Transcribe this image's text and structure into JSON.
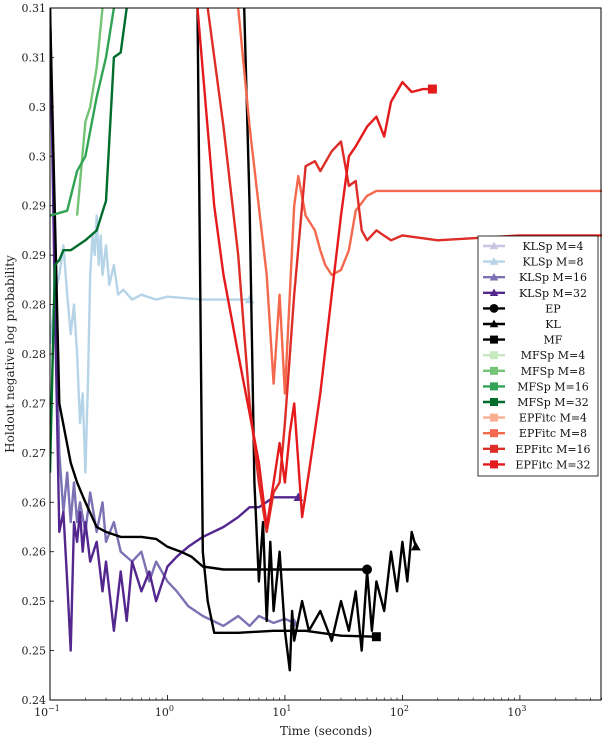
{
  "chart_data": {
    "type": "line",
    "xlabel": "Time (seconds)",
    "ylabel": "Holdout negative log probability",
    "x_scale": "log",
    "xlim": [
      0.1,
      5000
    ],
    "ylim": [
      0.24,
      0.31
    ],
    "x_ticks": [
      {
        "value": 0.1,
        "base": "10",
        "exp": "−1"
      },
      {
        "value": 1,
        "base": "10",
        "exp": "0"
      },
      {
        "value": 10,
        "base": "10",
        "exp": "1"
      },
      {
        "value": 100,
        "base": "10",
        "exp": "2"
      },
      {
        "value": 1000,
        "base": "10",
        "exp": "3"
      }
    ],
    "y_ticks": [
      {
        "value": 0.24,
        "label": "0.24"
      },
      {
        "value": 0.245,
        "label": "0.25"
      },
      {
        "value": 0.25,
        "label": "0.25"
      },
      {
        "value": 0.255,
        "label": "0.26"
      },
      {
        "value": 0.26,
        "label": "0.26"
      },
      {
        "value": 0.265,
        "label": "0.27"
      },
      {
        "value": 0.27,
        "label": "0.27"
      },
      {
        "value": 0.275,
        "label": "0.28"
      },
      {
        "value": 0.28,
        "label": "0.28"
      },
      {
        "value": 0.285,
        "label": "0.29"
      },
      {
        "value": 0.29,
        "label": "0.29"
      },
      {
        "value": 0.295,
        "label": "0.3"
      },
      {
        "value": 0.3,
        "label": "0.3"
      },
      {
        "value": 0.305,
        "label": "0.31"
      },
      {
        "value": 0.31,
        "label": "0.31"
      }
    ],
    "legend_position": "right",
    "series": [
      {
        "name": "KLSp M=4",
        "color": "#c8c6e2",
        "marker": "triangle",
        "points": []
      },
      {
        "name": "KLSp M=8",
        "color": "#b6d4e8",
        "marker": "triangle",
        "points": [
          [
            0.1,
            0.276
          ],
          [
            0.11,
            0.281
          ],
          [
            0.12,
            0.283
          ],
          [
            0.13,
            0.286
          ],
          [
            0.14,
            0.281
          ],
          [
            0.15,
            0.277
          ],
          [
            0.16,
            0.28
          ],
          [
            0.17,
            0.275
          ],
          [
            0.18,
            0.268
          ],
          [
            0.19,
            0.271
          ],
          [
            0.2,
            0.263
          ],
          [
            0.21,
            0.272
          ],
          [
            0.22,
            0.283
          ],
          [
            0.23,
            0.287
          ],
          [
            0.24,
            0.285
          ],
          [
            0.25,
            0.289
          ],
          [
            0.26,
            0.284
          ],
          [
            0.27,
            0.287
          ],
          [
            0.28,
            0.283
          ],
          [
            0.3,
            0.286
          ],
          [
            0.32,
            0.282
          ],
          [
            0.35,
            0.284
          ],
          [
            0.38,
            0.281
          ],
          [
            0.42,
            0.2815
          ],
          [
            0.5,
            0.2805
          ],
          [
            0.6,
            0.281
          ],
          [
            0.8,
            0.2805
          ],
          [
            1,
            0.2808
          ],
          [
            2,
            0.2805
          ],
          [
            3,
            0.2805
          ],
          [
            5,
            0.2805
          ]
        ]
      },
      {
        "name": "KLSp M=16",
        "color": "#7b72b4",
        "marker": "triangle",
        "points": [
          [
            0.1,
            0.31
          ],
          [
            0.11,
            0.283
          ],
          [
            0.12,
            0.265
          ],
          [
            0.13,
            0.259
          ],
          [
            0.14,
            0.263
          ],
          [
            0.15,
            0.258
          ],
          [
            0.16,
            0.262
          ],
          [
            0.17,
            0.258
          ],
          [
            0.18,
            0.26
          ],
          [
            0.2,
            0.257
          ],
          [
            0.22,
            0.261
          ],
          [
            0.25,
            0.257
          ],
          [
            0.28,
            0.26
          ],
          [
            0.3,
            0.256
          ],
          [
            0.35,
            0.258
          ],
          [
            0.4,
            0.255
          ],
          [
            0.5,
            0.254
          ],
          [
            0.6,
            0.255
          ],
          [
            0.7,
            0.252
          ],
          [
            0.8,
            0.254
          ],
          [
            1,
            0.252
          ],
          [
            1.2,
            0.251
          ],
          [
            1.5,
            0.2495
          ],
          [
            2,
            0.2485
          ],
          [
            3,
            0.2475
          ],
          [
            4,
            0.2485
          ],
          [
            5,
            0.2475
          ],
          [
            6,
            0.2485
          ],
          [
            8,
            0.2478
          ],
          [
            10,
            0.2482
          ],
          [
            12,
            0.2478
          ]
        ]
      },
      {
        "name": "KLSp M=32",
        "color": "#54278f",
        "marker": "triangle",
        "points": [
          [
            0.1,
            0.31
          ],
          [
            0.11,
            0.28
          ],
          [
            0.12,
            0.257
          ],
          [
            0.13,
            0.259
          ],
          [
            0.14,
            0.252
          ],
          [
            0.15,
            0.245
          ],
          [
            0.16,
            0.258
          ],
          [
            0.17,
            0.256
          ],
          [
            0.18,
            0.259
          ],
          [
            0.19,
            0.255
          ],
          [
            0.2,
            0.258
          ],
          [
            0.22,
            0.254
          ],
          [
            0.25,
            0.256
          ],
          [
            0.28,
            0.251
          ],
          [
            0.3,
            0.254
          ],
          [
            0.35,
            0.247
          ],
          [
            0.4,
            0.253
          ],
          [
            0.45,
            0.248
          ],
          [
            0.5,
            0.254
          ],
          [
            0.6,
            0.251
          ],
          [
            0.7,
            0.253
          ],
          [
            0.8,
            0.25
          ],
          [
            1,
            0.2535
          ],
          [
            1.2,
            0.2545
          ],
          [
            1.5,
            0.2555
          ],
          [
            2,
            0.2565
          ],
          [
            3,
            0.2575
          ],
          [
            4,
            0.2585
          ],
          [
            5,
            0.2595
          ],
          [
            6,
            0.2595
          ],
          [
            8,
            0.2605
          ],
          [
            10,
            0.2605
          ],
          [
            13,
            0.2605
          ]
        ]
      },
      {
        "name": "EP",
        "color": "#000000",
        "marker": "circle",
        "points": [
          [
            0.1,
            0.31
          ],
          [
            0.12,
            0.27
          ],
          [
            0.15,
            0.264
          ],
          [
            0.17,
            0.262
          ],
          [
            0.2,
            0.26
          ],
          [
            0.25,
            0.2575
          ],
          [
            0.3,
            0.257
          ],
          [
            0.4,
            0.2565
          ],
          [
            0.6,
            0.2565
          ],
          [
            0.8,
            0.2563
          ],
          [
            1,
            0.2555
          ],
          [
            1.3,
            0.255
          ],
          [
            1.6,
            0.2545
          ],
          [
            2,
            0.2535
          ],
          [
            3,
            0.2532
          ],
          [
            5,
            0.2532
          ],
          [
            10,
            0.2532
          ],
          [
            20,
            0.2532
          ],
          [
            50,
            0.2532
          ]
        ]
      },
      {
        "name": "KL",
        "color": "#000000",
        "marker": "triangle",
        "points": [
          [
            4.5,
            0.31
          ],
          [
            5,
            0.29
          ],
          [
            5.5,
            0.262
          ],
          [
            6,
            0.252
          ],
          [
            6.5,
            0.258
          ],
          [
            7,
            0.248
          ],
          [
            7.5,
            0.256
          ],
          [
            8,
            0.249
          ],
          [
            9,
            0.255
          ],
          [
            10,
            0.247
          ],
          [
            11,
            0.243
          ],
          [
            11.5,
            0.249
          ],
          [
            12,
            0.246
          ],
          [
            14,
            0.25
          ],
          [
            16,
            0.247
          ],
          [
            20,
            0.249
          ],
          [
            25,
            0.246
          ],
          [
            30,
            0.25
          ],
          [
            35,
            0.247
          ],
          [
            40,
            0.251
          ],
          [
            45,
            0.245
          ],
          [
            50,
            0.253
          ],
          [
            55,
            0.247
          ],
          [
            60,
            0.252
          ],
          [
            70,
            0.249
          ],
          [
            80,
            0.255
          ],
          [
            90,
            0.251
          ],
          [
            100,
            0.256
          ],
          [
            110,
            0.252
          ],
          [
            120,
            0.257
          ],
          [
            130,
            0.2555
          ]
        ]
      },
      {
        "name": "MF",
        "color": "#000000",
        "marker": "square",
        "points": [
          [
            1.8,
            0.31
          ],
          [
            2,
            0.255
          ],
          [
            2.2,
            0.25
          ],
          [
            2.5,
            0.2468
          ],
          [
            4,
            0.2468
          ],
          [
            8,
            0.247
          ],
          [
            15,
            0.247
          ],
          [
            30,
            0.2465
          ],
          [
            60,
            0.2464
          ]
        ]
      },
      {
        "name": "MFSp M=4",
        "color": "#c7e9c0",
        "marker": "square",
        "points": []
      },
      {
        "name": "MFSp M=8",
        "color": "#74c476",
        "marker": "square",
        "points": [
          [
            0.17,
            0.289
          ],
          [
            0.2,
            0.2985
          ],
          [
            0.22,
            0.3
          ],
          [
            0.25,
            0.304
          ],
          [
            0.28,
            0.31
          ]
        ]
      },
      {
        "name": "MFSp M=16",
        "color": "#31a354",
        "marker": "square",
        "points": [
          [
            0.1,
            0.289
          ],
          [
            0.14,
            0.2895
          ],
          [
            0.17,
            0.2935
          ],
          [
            0.2,
            0.295
          ],
          [
            0.25,
            0.301
          ],
          [
            0.3,
            0.305
          ],
          [
            0.35,
            0.31
          ]
        ]
      },
      {
        "name": "MFSp M=32",
        "color": "#006d2c",
        "marker": "square",
        "points": [
          [
            0.1,
            0.263
          ],
          [
            0.11,
            0.284
          ],
          [
            0.12,
            0.2845
          ],
          [
            0.13,
            0.2855
          ],
          [
            0.15,
            0.2855
          ],
          [
            0.2,
            0.2865
          ],
          [
            0.25,
            0.2875
          ],
          [
            0.3,
            0.2905
          ],
          [
            0.35,
            0.305
          ],
          [
            0.4,
            0.3055
          ],
          [
            0.45,
            0.31
          ]
        ]
      },
      {
        "name": "EPFitc M=4",
        "color": "#fcae91",
        "marker": "square",
        "points": []
      },
      {
        "name": "EPFitc M=8",
        "color": "#f4694d",
        "marker": "square",
        "points": [
          [
            4,
            0.31
          ],
          [
            5,
            0.298
          ],
          [
            7,
            0.283
          ],
          [
            8,
            0.272
          ],
          [
            9,
            0.281
          ],
          [
            10,
            0.271
          ],
          [
            11,
            0.281
          ],
          [
            12,
            0.29
          ],
          [
            13,
            0.293
          ],
          [
            15,
            0.289
          ],
          [
            18,
            0.2875
          ],
          [
            20,
            0.2855
          ],
          [
            22,
            0.284
          ],
          [
            25,
            0.283
          ],
          [
            30,
            0.2835
          ],
          [
            35,
            0.2855
          ],
          [
            40,
            0.2895
          ],
          [
            50,
            0.291
          ],
          [
            60,
            0.2915
          ],
          [
            80,
            0.2915
          ],
          [
            100,
            0.2915
          ],
          [
            200,
            0.2915
          ],
          [
            5000,
            0.2915
          ]
        ]
      },
      {
        "name": "EPFitc M=16",
        "color": "#de2d26",
        "marker": "square",
        "points": [
          [
            2.2,
            0.31
          ],
          [
            3,
            0.298
          ],
          [
            4,
            0.285
          ],
          [
            5,
            0.27
          ],
          [
            6,
            0.262
          ],
          [
            7,
            0.257
          ],
          [
            8,
            0.261
          ],
          [
            9,
            0.262
          ],
          [
            10,
            0.268
          ],
          [
            12,
            0.281
          ],
          [
            15,
            0.294
          ],
          [
            18,
            0.2945
          ],
          [
            20,
            0.2935
          ],
          [
            25,
            0.2955
          ],
          [
            30,
            0.2965
          ],
          [
            35,
            0.292
          ],
          [
            40,
            0.2925
          ],
          [
            45,
            0.2875
          ],
          [
            50,
            0.2865
          ],
          [
            60,
            0.2875
          ],
          [
            80,
            0.2865
          ],
          [
            100,
            0.287
          ],
          [
            200,
            0.2865
          ],
          [
            1000,
            0.287
          ],
          [
            5000,
            0.287
          ]
        ]
      },
      {
        "name": "EPFitc M=32",
        "color": "#e41a1c",
        "marker": "square",
        "points": [
          [
            1.8,
            0.31
          ],
          [
            2.5,
            0.29
          ],
          [
            3,
            0.283
          ],
          [
            4,
            0.275
          ],
          [
            5,
            0.269
          ],
          [
            6,
            0.264
          ],
          [
            7,
            0.2575
          ],
          [
            8,
            0.262
          ],
          [
            9,
            0.266
          ],
          [
            10,
            0.262
          ],
          [
            11,
            0.267
          ],
          [
            12,
            0.27
          ],
          [
            14,
            0.2585
          ],
          [
            16,
            0.263
          ],
          [
            20,
            0.271
          ],
          [
            25,
            0.281
          ],
          [
            30,
            0.289
          ],
          [
            35,
            0.295
          ],
          [
            40,
            0.296
          ],
          [
            50,
            0.298
          ],
          [
            60,
            0.299
          ],
          [
            70,
            0.297
          ],
          [
            80,
            0.3005
          ],
          [
            100,
            0.3025
          ],
          [
            120,
            0.3015
          ],
          [
            150,
            0.3018
          ],
          [
            180,
            0.3018
          ]
        ]
      }
    ]
  }
}
